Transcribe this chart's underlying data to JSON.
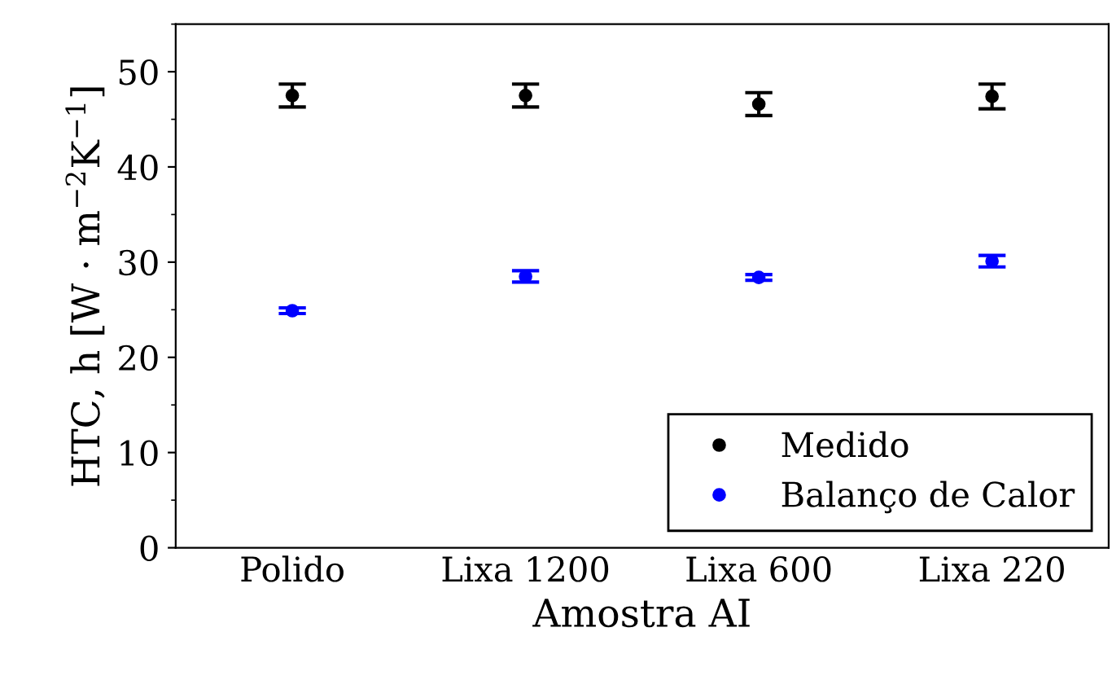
{
  "chart_data": {
    "type": "scatter",
    "xlabel": "Amostra AI",
    "ylabel": "HTC, h [W · m$^{−2}$K$^{−1}$]",
    "categories": [
      "Polido",
      "Lixa 1200",
      "Lixa 600",
      "Lixa 220"
    ],
    "series": [
      {
        "name": "Medido",
        "color": "#000000",
        "values": [
          47.5,
          47.5,
          46.6,
          47.4
        ],
        "errors": [
          1.2,
          1.2,
          1.2,
          1.3
        ]
      },
      {
        "name": "Balanço de Calor",
        "color": "#0000ff",
        "values": [
          24.9,
          28.5,
          28.4,
          30.1
        ],
        "errors": [
          0.3,
          0.6,
          0.3,
          0.6
        ]
      }
    ],
    "ylim": [
      0,
      55
    ],
    "yticks": [
      0,
      10,
      20,
      30,
      40,
      50
    ],
    "grid": false,
    "legend": "bottom right",
    "marker": "circle"
  }
}
